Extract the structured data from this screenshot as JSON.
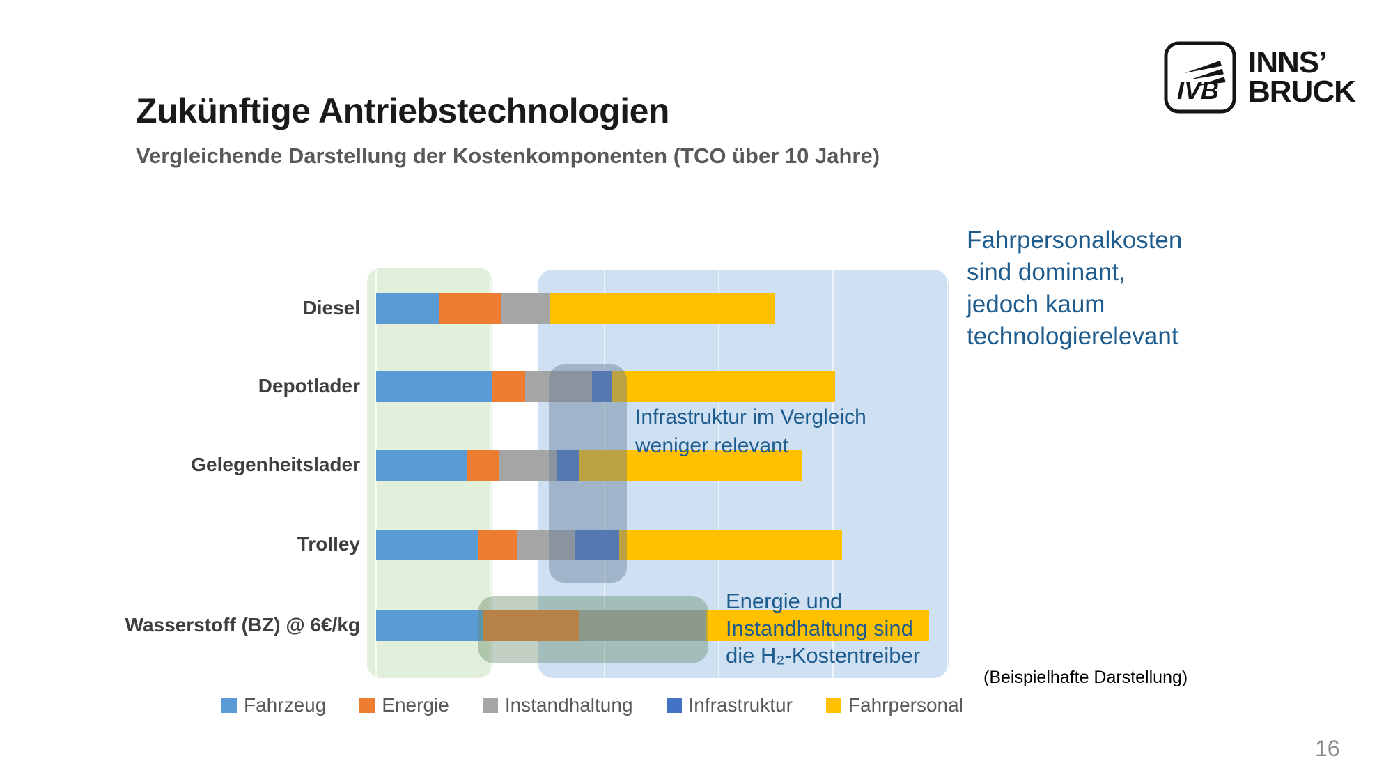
{
  "slide": {
    "title": "Zukünftige Antriebstechnologien",
    "subtitle": "Vergleichende Darstellung der Kostenkomponenten (TCO über 10 Jahre)",
    "footnote": "(Beispielhafte Darstellung)",
    "page_number": "16"
  },
  "logo": {
    "mark": "IVB",
    "line1": "INNS’",
    "line2": "BRUCK"
  },
  "chart_data": {
    "type": "bar",
    "orientation": "horizontal-stacked",
    "unit": "relative cost over 10 years (Fahrpersonal ≈ 100)",
    "title": "Vergleichende Darstellung der Kostenkomponenten (TCO über 10 Jahre)",
    "xlabel": "",
    "ylabel": "",
    "grid": "faint vertical gridlines, no axis tick labels",
    "legend_position": "bottom",
    "categories": [
      "Diesel",
      "Depotlader",
      "Gelegenheitslader",
      "Trolley",
      "Wasserstoff (BZ) @ 6€/kg"
    ],
    "series": [
      {
        "name": "Fahrzeug",
        "color": "#5B9BD5",
        "values": [
          28,
          52,
          41,
          46,
          48
        ]
      },
      {
        "name": "Energie",
        "color": "#ED7D31",
        "values": [
          28,
          15,
          14,
          17,
          43
        ]
      },
      {
        "name": "Instandhaltung",
        "color": "#A5A5A5",
        "values": [
          22,
          30,
          26,
          26,
          57
        ]
      },
      {
        "name": "Infrastruktur",
        "color": "#4472C4",
        "values": [
          0,
          9,
          10,
          20,
          0
        ]
      },
      {
        "name": "Fahrpersonal",
        "color": "#FFC000",
        "values": [
          101,
          100,
          100,
          100,
          100
        ]
      }
    ]
  },
  "annotations": {
    "text_color": "#1F5C8E",
    "fahrpersonal": {
      "lines": [
        "Fahrpersonalkosten",
        "sind dominant,",
        "jedoch kaum",
        "technologierelevant"
      ]
    },
    "infrastruktur": {
      "lines": [
        "Infrastruktur im Vergleich",
        "weniger relevant"
      ]
    },
    "h2": {
      "lines": [
        "Energie und",
        "Instandhaltung sind",
        "die H₂-Kostentreiber"
      ]
    }
  },
  "highlights": {
    "green_band": "#E2EFDA",
    "blue_panel": "#CEE0F2",
    "slate_overlay": "rgba(104,128,150,0.45)",
    "green_overlay": "rgba(99,137,105,0.40)"
  }
}
